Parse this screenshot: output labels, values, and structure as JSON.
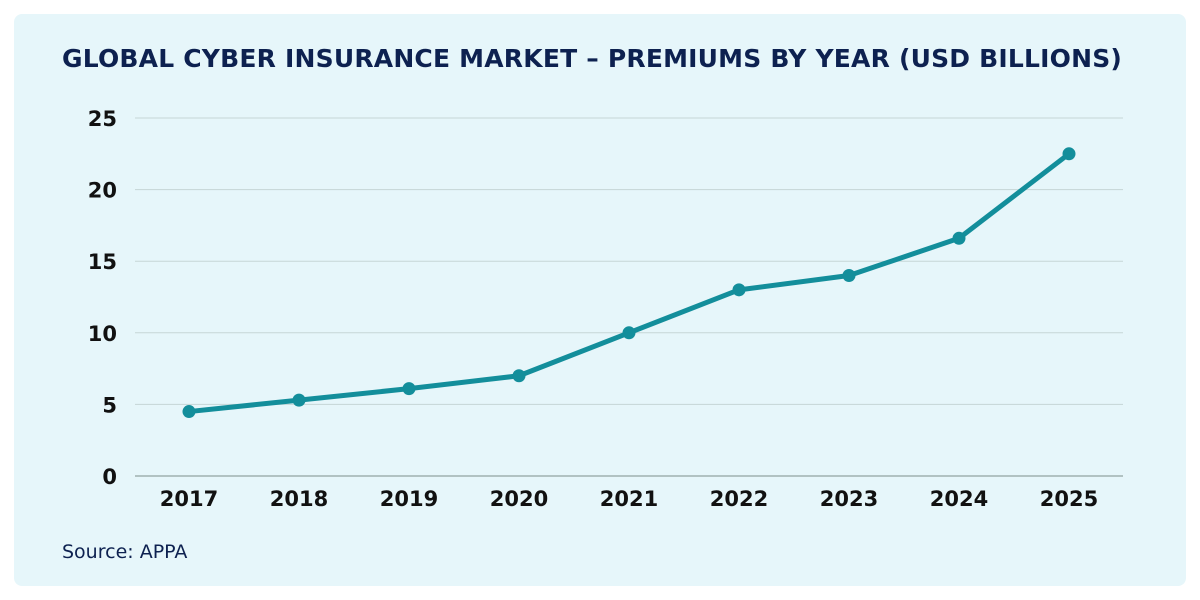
{
  "chart_data": {
    "type": "line",
    "title": "GLOBAL CYBER INSURANCE MARKET – PREMIUMS BY YEAR (USD BILLIONS)",
    "categories": [
      "2017",
      "2018",
      "2019",
      "2020",
      "2021",
      "2022",
      "2023",
      "2024",
      "2025"
    ],
    "series": [
      {
        "values": [
          4.5,
          5.3,
          6.1,
          7.0,
          10.0,
          13.0,
          14.0,
          16.6,
          22.5
        ],
        "color": "#138e9b"
      }
    ],
    "xlabel": "",
    "ylabel": "",
    "ylim": [
      0,
      25
    ],
    "yticks": [
      "0",
      "5",
      "10",
      "15",
      "20",
      "25"
    ],
    "grid": true,
    "source": "Source: APPA"
  },
  "colors": {
    "background": "#e6f6fa",
    "title": "#0d2150",
    "line": "#138e9b",
    "grid": "#c5d5d6"
  }
}
